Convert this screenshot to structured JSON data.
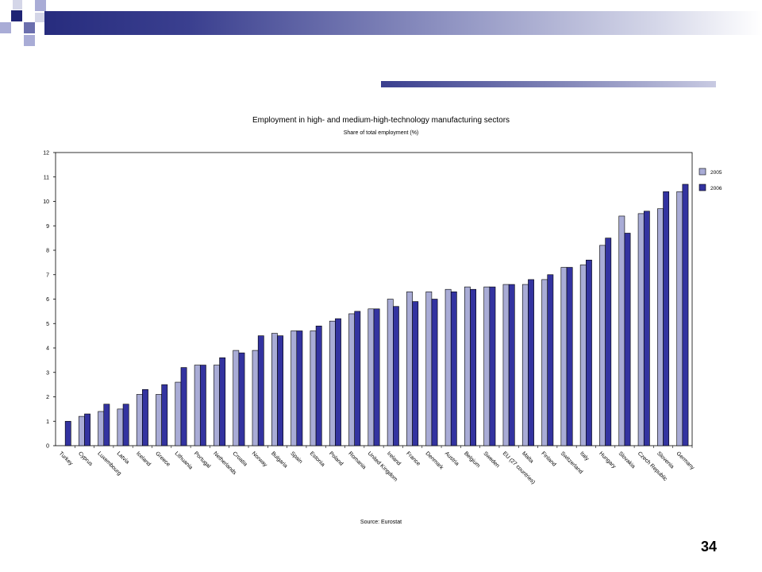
{
  "colors": {
    "series_2005": "#a9acd6",
    "series_2006": "#3333a0",
    "bar_stroke": "#000000",
    "brand_dark": "#272c7e",
    "brand_mid": "#6b6fae",
    "brand_light": "#b8bbd9"
  },
  "page_number": "34",
  "chart_data": {
    "type": "bar",
    "title": "Employment in high- and medium-high-technology manufacturing sectors",
    "subtitle": "Share of total employment (%)",
    "source": "Source: Eurostat",
    "xlabel": "",
    "ylabel": "",
    "ylim": [
      0,
      12
    ],
    "yticks": [
      "0",
      "1",
      "2",
      "3",
      "4",
      "5",
      "6",
      "7",
      "8",
      "9",
      "10",
      "11",
      "12"
    ],
    "grid": false,
    "legend_position": "right",
    "categories": [
      "Turkey",
      "Cyprus",
      "Luxembourg",
      "Latvia",
      "Iceland",
      "Greece",
      "Lithuania",
      "Portugal",
      "Netherlands",
      "Croatia",
      "Norway",
      "Bulgaria",
      "Spain",
      "Estonia",
      "Poland",
      "Romania",
      "United Kingdom",
      "Ireland",
      "France",
      "Denmark",
      "Austria",
      "Belgium",
      "Sweden",
      "EU (27 countries)",
      "Malta",
      "Finland",
      "Switzerland",
      "Italy",
      "Hungary",
      "Slovakia",
      "Czech Republic",
      "Slovenia",
      "Germany"
    ],
    "series": [
      {
        "name": "2005",
        "values": [
          null,
          1.2,
          1.4,
          1.5,
          2.1,
          2.1,
          2.6,
          3.3,
          3.3,
          3.9,
          3.9,
          4.6,
          4.7,
          4.7,
          5.1,
          5.4,
          5.6,
          6.0,
          6.3,
          6.3,
          6.4,
          6.5,
          6.5,
          6.6,
          6.6,
          6.8,
          7.3,
          7.4,
          8.2,
          9.4,
          9.5,
          9.7,
          10.4
        ]
      },
      {
        "name": "2006",
        "values": [
          1.0,
          1.3,
          1.7,
          1.7,
          2.3,
          2.5,
          3.2,
          3.3,
          3.6,
          3.8,
          4.5,
          4.5,
          4.7,
          4.9,
          5.2,
          5.5,
          5.6,
          5.7,
          5.9,
          6.0,
          6.3,
          6.4,
          6.5,
          6.6,
          6.8,
          7.0,
          7.3,
          7.6,
          8.5,
          8.7,
          9.6,
          10.4,
          10.7
        ]
      }
    ]
  }
}
